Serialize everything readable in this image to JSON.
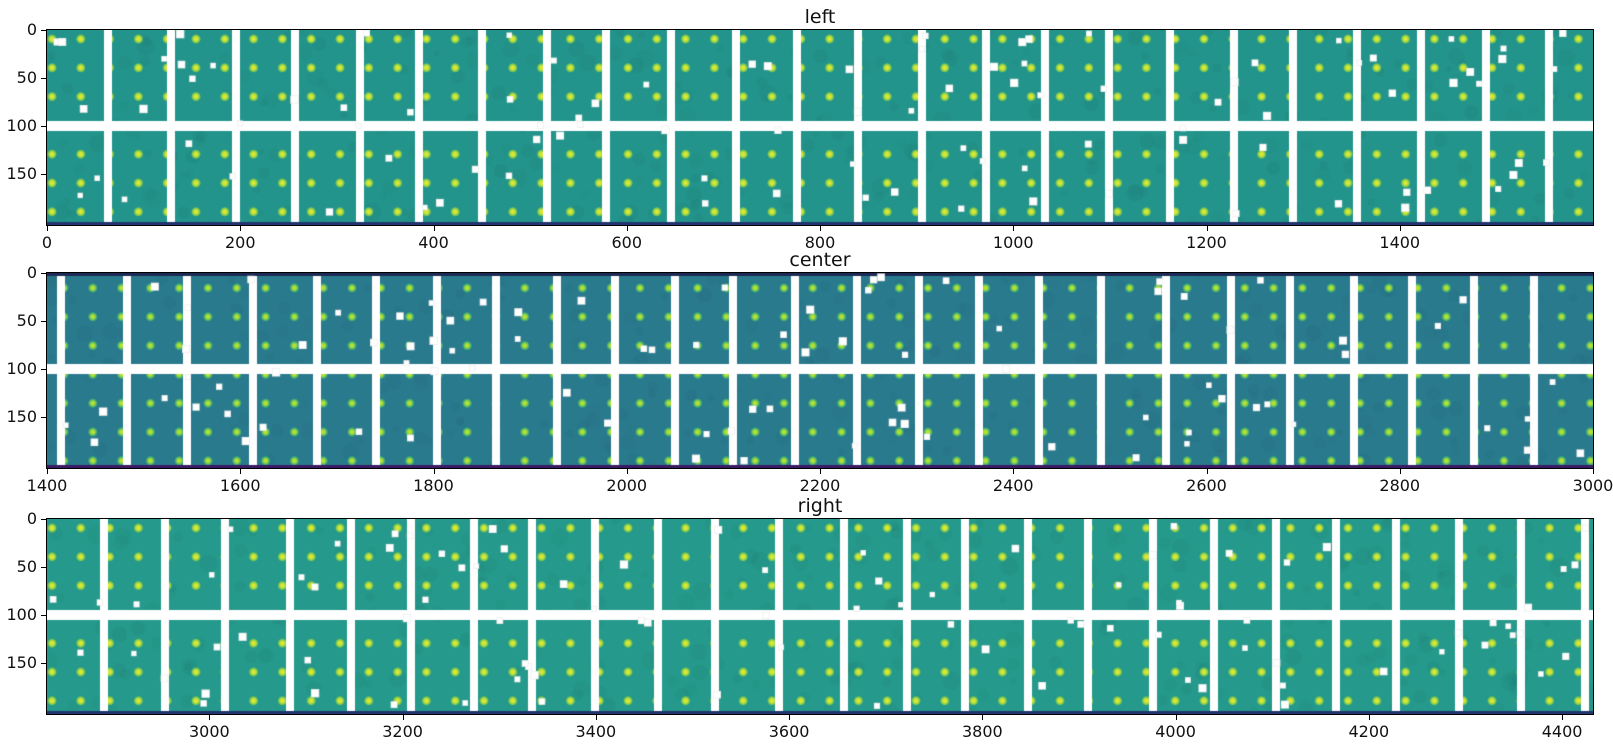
{
  "figure": {
    "kind": "matplotlib-style image mosaic figure, 3 stacked subplots",
    "background": "#ffffff",
    "text_color": "#111111"
  },
  "chart_data": {
    "type": "heatmap",
    "description": "Three horizontal strips (left, center, right) of a tiled detector image mosaic rendered with a viridis-like colormap: teal tile backgrounds, a regular lattice of bright yellow-green spot peaks, white inter-tile gap bands (vertical gaps plus one horizontal gap band mid-height), dark navy/purple edge rows, and sparse white hot-pixel speckles.",
    "panels": [
      {
        "title": "left",
        "xlim": [
          0,
          1600
        ],
        "ylim": [
          0,
          202
        ],
        "xticks": [
          0,
          200,
          400,
          600,
          800,
          1000,
          1200,
          1400
        ],
        "yticks": [
          0,
          50,
          100,
          150
        ],
        "colors": {
          "background": "#23948b",
          "dot_core": "#d7e837",
          "dot_mid": "#86cc4c",
          "gap": "#ffffff",
          "bottom_edge": "#22346d",
          "top_edge": null,
          "speckle": "#ffffff"
        },
        "tile_gap_phase": 61,
        "tile_pitch": 61.7,
        "gap_width": 8,
        "h_gap_y": [
          91,
          101
        ],
        "dot_pitch": 28.8,
        "dot_offset_x": 5,
        "dot_offset_y": 9,
        "speckle_count": 95,
        "seed": 11
      },
      {
        "title": "center",
        "xlim": [
          1400,
          3000
        ],
        "ylim": [
          0,
          202
        ],
        "xticks": [
          1400,
          1600,
          1800,
          2000,
          2200,
          2400,
          2600,
          2800,
          3000
        ],
        "yticks": [
          0,
          50,
          100,
          150
        ],
        "colors": {
          "background": "#2a7a8e",
          "dot_core": "#b5e035",
          "dot_mid": "#4cb86a",
          "gap": "#ffffff",
          "bottom_edge": "#3a1b63",
          "top_edge": "#1b2a55",
          "speckle": "#ffffff"
        },
        "tile_gap_phase": 14,
        "tile_pitch": 61.7,
        "gap_width": 8,
        "h_gap_y": [
          91,
          101
        ],
        "dot_pitch": 28.8,
        "dot_offset_x": 17,
        "dot_offset_y": 15,
        "speckle_count": 85,
        "seed": 22
      },
      {
        "title": "right",
        "xlim": [
          2832,
          4432
        ],
        "ylim": [
          0,
          202
        ],
        "xticks": [
          3000,
          3200,
          3400,
          3600,
          3800,
          4000,
          4200,
          4400
        ],
        "yticks": [
          0,
          50,
          100,
          150
        ],
        "colors": {
          "background": "#25998b",
          "dot_core": "#d7e837",
          "dot_mid": "#86cc4c",
          "gap": "#ffffff",
          "bottom_edge": "#22346d",
          "top_edge": null,
          "speckle": "#ffffff"
        },
        "tile_gap_phase": 57,
        "tile_pitch": 61.7,
        "gap_width": 8,
        "h_gap_y": [
          91,
          101
        ],
        "dot_pitch": 28.8,
        "dot_offset_x": 5,
        "dot_offset_y": 9,
        "speckle_count": 88,
        "seed": 33
      }
    ],
    "axis": {
      "spine_color": "#000000",
      "tick_color": "#000000",
      "tick_label_color": "#111111"
    },
    "legend": null,
    "grid": false
  }
}
